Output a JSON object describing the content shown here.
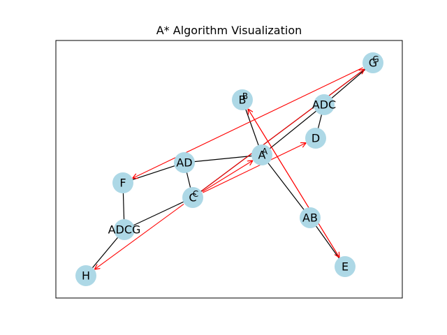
{
  "title": "A* Algorithm Visualization",
  "colors": {
    "node_fill": "#add8e6",
    "graph_edge": "#000000",
    "path_arrow": "#ff0000",
    "frame": "#000000",
    "background": "#ffffff"
  },
  "nodes": [
    {
      "id": "G",
      "label": "G",
      "overlay": "G"
    },
    {
      "id": "B",
      "label": "B",
      "overlay": "B"
    },
    {
      "id": "ADC",
      "label": "ADC"
    },
    {
      "id": "D",
      "label": "D"
    },
    {
      "id": "A",
      "label": "A",
      "overlay": "A"
    },
    {
      "id": "AD",
      "label": "AD"
    },
    {
      "id": "F",
      "label": "F"
    },
    {
      "id": "C",
      "label": "C",
      "overlay": "C"
    },
    {
      "id": "ADCG",
      "label": "ADCG"
    },
    {
      "id": "AB",
      "label": "AB"
    },
    {
      "id": "H",
      "label": "H"
    },
    {
      "id": "E",
      "label": "E"
    }
  ],
  "edges": [
    {
      "from": "B",
      "to": "A"
    },
    {
      "from": "A",
      "to": "AB"
    },
    {
      "from": "AB",
      "to": "E"
    },
    {
      "from": "AD",
      "to": "A"
    },
    {
      "from": "A",
      "to": "ADC"
    },
    {
      "from": "ADC",
      "to": "D"
    },
    {
      "from": "ADC",
      "to": "G"
    },
    {
      "from": "AD",
      "to": "C"
    },
    {
      "from": "AD",
      "to": "F"
    },
    {
      "from": "F",
      "to": "ADCG"
    },
    {
      "from": "ADCG",
      "to": "C"
    },
    {
      "from": "ADCG",
      "to": "H"
    },
    {
      "from": "C",
      "to": "G"
    }
  ],
  "arrows": [
    {
      "from": "G",
      "to": "F"
    },
    {
      "from": "C",
      "to": "G"
    },
    {
      "from": "C",
      "to": "A"
    },
    {
      "from": "C",
      "to": "D"
    },
    {
      "from": "C",
      "to": "H"
    },
    {
      "from": "B",
      "to": "E"
    },
    {
      "from": "E",
      "to": "B"
    }
  ]
}
